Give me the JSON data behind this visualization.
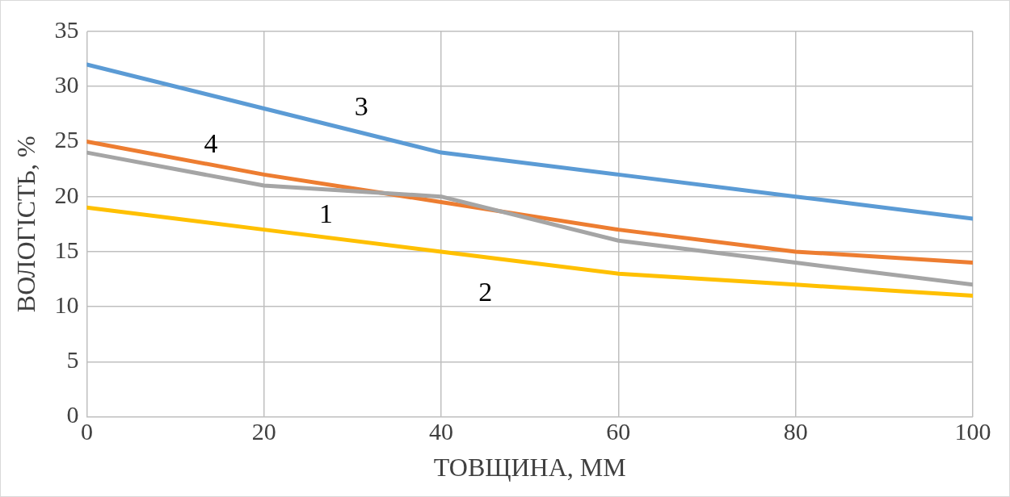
{
  "chart_data": {
    "type": "line",
    "xlabel": "ТОВЩИНА, ММ",
    "ylabel": "ВОЛОГІСТЬ, %",
    "x": [
      0,
      20,
      40,
      60,
      80,
      100
    ],
    "series": [
      {
        "name": "1",
        "color": "#a5a5a5",
        "values": [
          24,
          21,
          20,
          16,
          14,
          12
        ]
      },
      {
        "name": "2",
        "color": "#ffc000",
        "values": [
          19,
          17,
          15,
          13,
          12,
          11
        ]
      },
      {
        "name": "3",
        "color": "#5b9bd5",
        "values": [
          32,
          28,
          24,
          22,
          20,
          18
        ]
      },
      {
        "name": "4",
        "color": "#ed7d31",
        "values": [
          25,
          22,
          19.5,
          17,
          15,
          14
        ]
      }
    ],
    "xlim": [
      0,
      100
    ],
    "xticks": [
      0,
      20,
      40,
      60,
      80,
      100
    ],
    "ylim": [
      0,
      35
    ],
    "yticks": [
      0,
      5,
      10,
      15,
      20,
      25,
      30,
      35
    ],
    "grid": true,
    "legend": false,
    "marker": "none",
    "line_style": "solid"
  }
}
